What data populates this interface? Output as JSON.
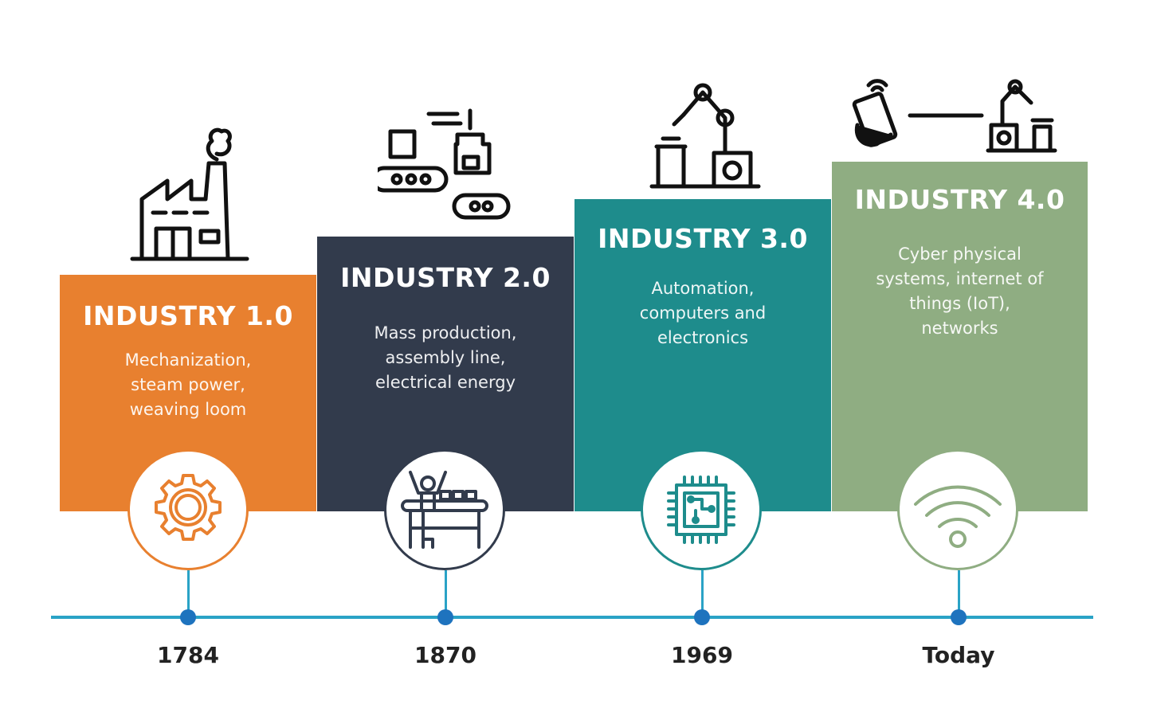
{
  "eras": [
    {
      "title": "INDUSTRY 1.0",
      "description": "Mechanization,\nsteam power,\nweaving loom",
      "year": "1784",
      "color": "#e8802f",
      "top_icon": "factory-icon",
      "circle_icon": "gear-icon"
    },
    {
      "title": "INDUSTRY 2.0",
      "description": "Mass production,\nassembly line,\nelectrical energy",
      "year": "1870",
      "color": "#323b4c",
      "top_icon": "assembly-conveyor-icon",
      "circle_icon": "worker-assembly-line-icon"
    },
    {
      "title": "INDUSTRY 3.0",
      "description": "Automation,\ncomputers and\nelectronics",
      "year": "1969",
      "color": "#1e8c8c",
      "top_icon": "robotic-arm-icon",
      "circle_icon": "microchip-icon"
    },
    {
      "title": "INDUSTRY 4.0",
      "description": "Cyber physical\nsystems, internet of\nthings (IoT),\nnetworks",
      "year": "Today",
      "color": "#8fad82",
      "top_icon": "smartphone-robot-connected-icon",
      "circle_icon": "wifi-icon"
    }
  ],
  "timeline_color": "#2aa3c6",
  "dot_color": "#1e73be"
}
